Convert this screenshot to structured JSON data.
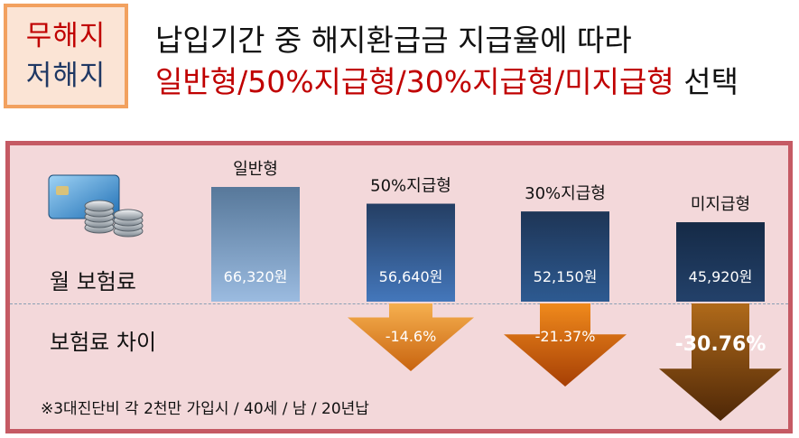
{
  "badge": {
    "line1": "무해지",
    "line2": "저해지"
  },
  "headline": {
    "line1": "납입기간 중 해지환급금 지급율에 따라",
    "line2_red": "일반형/50%지급형/30%지급형/미지급형",
    "line2_tail": " 선택"
  },
  "row_labels": {
    "premium": "월 보험료",
    "difference": "보험료 차이"
  },
  "footnote": "※3대진단비 각 2천만 가입시 / 40세 / 남 / 20년납",
  "icon": "credit-card-coins-icon",
  "colors": {
    "title_red": "#c00000",
    "panel_bg": "#f3d8da",
    "panel_border": "#c55a64",
    "badge_border": "#f2a15f"
  },
  "chart_data": {
    "type": "bar",
    "categories": [
      "일반형",
      "50%지급형",
      "30%지급형",
      "미지급형"
    ],
    "values": [
      66320,
      56640,
      52150,
      45920
    ],
    "value_labels": [
      "66,320원",
      "56,640원",
      "52,150원",
      "45,920원"
    ],
    "differences": [
      null,
      -14.6,
      -21.37,
      -30.76
    ],
    "difference_labels": [
      "",
      "-14.6%",
      "-21.37%",
      "-30.76%"
    ]
  }
}
